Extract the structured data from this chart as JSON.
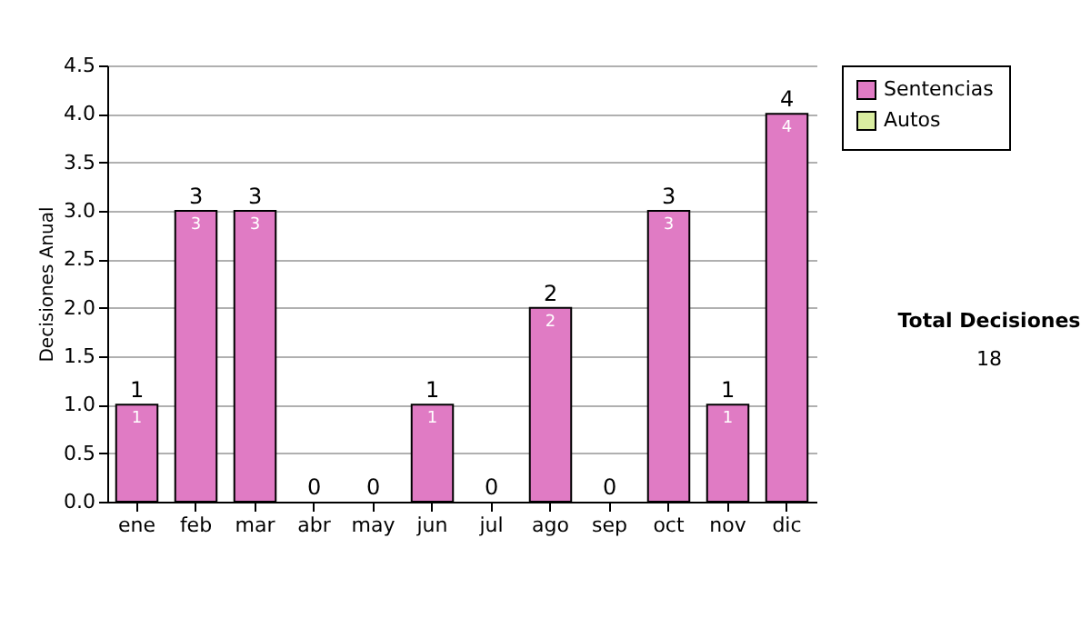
{
  "chart_data": {
    "type": "bar",
    "ylabel": "Decisiones Anual",
    "categories": [
      "ene",
      "feb",
      "mar",
      "abr",
      "may",
      "jun",
      "jul",
      "ago",
      "sep",
      "oct",
      "nov",
      "dic"
    ],
    "stacked": true,
    "series": [
      {
        "name": "Sentencias",
        "color": "#e07bc4",
        "values": [
          1,
          3,
          3,
          0,
          0,
          1,
          0,
          2,
          0,
          3,
          1,
          4
        ],
        "value_labels": [
          "1",
          "3",
          "3",
          null,
          null,
          "1",
          null,
          "2",
          null,
          "3",
          "1",
          "4"
        ]
      },
      {
        "name": "Autos",
        "color": "#d9eda0",
        "values": [
          0,
          0,
          0,
          0,
          0,
          0,
          0,
          0,
          0,
          0,
          0,
          0
        ]
      }
    ],
    "totals": [
      "1",
      "3",
      "3",
      "0",
      "0",
      "1",
      "0",
      "2",
      "0",
      "3",
      "1",
      "4"
    ],
    "ylim": [
      0,
      4.5
    ],
    "yticks": [
      {
        "value": 0,
        "label": "0.0"
      },
      {
        "value": 0.5,
        "label": "0.5"
      },
      {
        "value": 1,
        "label": "1.0"
      },
      {
        "value": 1.5,
        "label": "1.5"
      },
      {
        "value": 2,
        "label": "2.0"
      },
      {
        "value": 2.5,
        "label": "2.5"
      },
      {
        "value": 3,
        "label": "3.0"
      },
      {
        "value": 3.5,
        "label": "3.5"
      },
      {
        "value": 4,
        "label": "4.0"
      },
      {
        "value": 4.5,
        "label": "4.5"
      }
    ],
    "grid": "y",
    "legend": "right",
    "annotations": [
      "Total Decisiones",
      "18"
    ]
  }
}
